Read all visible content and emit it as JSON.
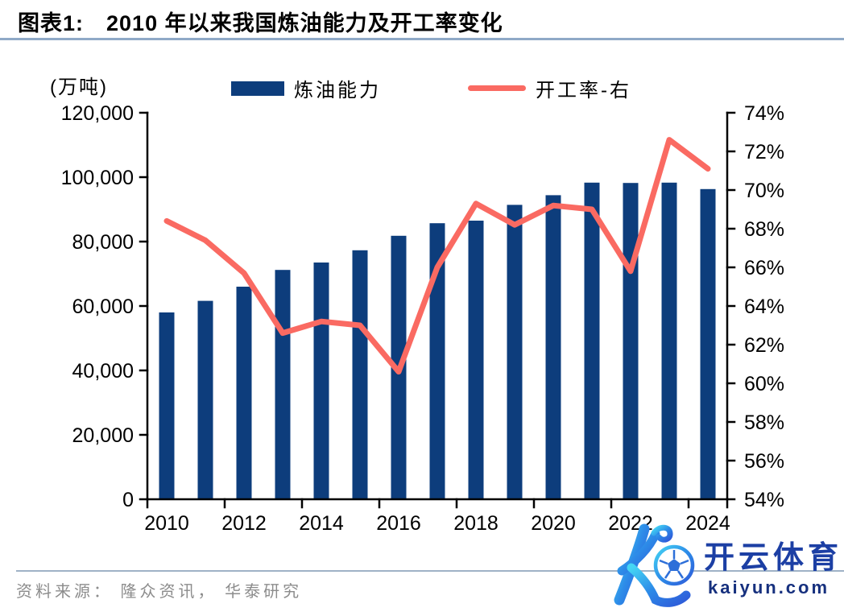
{
  "header": {
    "fig_label": "图表1:",
    "title": "2010 年以来我国炼油能力及开工率变化"
  },
  "legend": {
    "bar_label": "炼油能力",
    "line_label": "开工率-右"
  },
  "source": "资料来源： 隆众资讯， 华泰研究",
  "watermark": {
    "logo": "kaiyun-k-football-logo",
    "brand": "开云体育",
    "domain": "kaiyun.com"
  },
  "colors": {
    "bar": "#0d3d7c",
    "line": "#fa6a62",
    "title_rule": "#8fa9c7",
    "source_rule": "#9fb2c6",
    "source_text": "#8c8c8c",
    "axis": "#000000",
    "watermark_brand": "#1c3fa4",
    "watermark_domain": "#16307e",
    "logo_cyan": "#45d6f4",
    "logo_blue": "#2d8be8",
    "logo_deep": "#2e5bd9"
  },
  "chart_data": {
    "type": "bar+line combo",
    "title": "2010 年以来我国炼油能力及开工率变化",
    "grid": false,
    "legend_position": "top",
    "categories": [
      2010,
      2011,
      2012,
      2013,
      2014,
      2015,
      2016,
      2017,
      2018,
      2019,
      2020,
      2021,
      2022,
      2023,
      2024
    ],
    "x_tick_labels": [
      "2010",
      "2012",
      "2014",
      "2016",
      "2018",
      "2020",
      "2022",
      "2024"
    ],
    "left_axis": {
      "label": "(万吨)",
      "min": 0,
      "max": 120000,
      "tick_step": 20000,
      "ticks": [
        0,
        20000,
        40000,
        60000,
        80000,
        100000,
        120000
      ]
    },
    "right_axis": {
      "label": "开工率",
      "unit": "%",
      "min": 54,
      "max": 74,
      "tick_step": 2,
      "ticks": [
        54,
        56,
        58,
        60,
        62,
        64,
        66,
        68,
        70,
        72,
        74
      ]
    },
    "series": [
      {
        "name": "炼油能力",
        "type": "bar",
        "axis": "left",
        "unit": "万吨",
        "values": [
          58000,
          61600,
          66000,
          71200,
          73500,
          77300,
          81800,
          85700,
          86500,
          91400,
          94400,
          98300,
          98200,
          98300,
          96300
        ]
      },
      {
        "name": "开工率-右",
        "type": "line",
        "axis": "right",
        "unit": "%",
        "values": [
          68.4,
          67.4,
          65.7,
          62.6,
          63.2,
          63.0,
          60.6,
          66.0,
          69.3,
          68.2,
          69.2,
          69.0,
          65.8,
          72.6,
          71.1
        ]
      }
    ]
  }
}
